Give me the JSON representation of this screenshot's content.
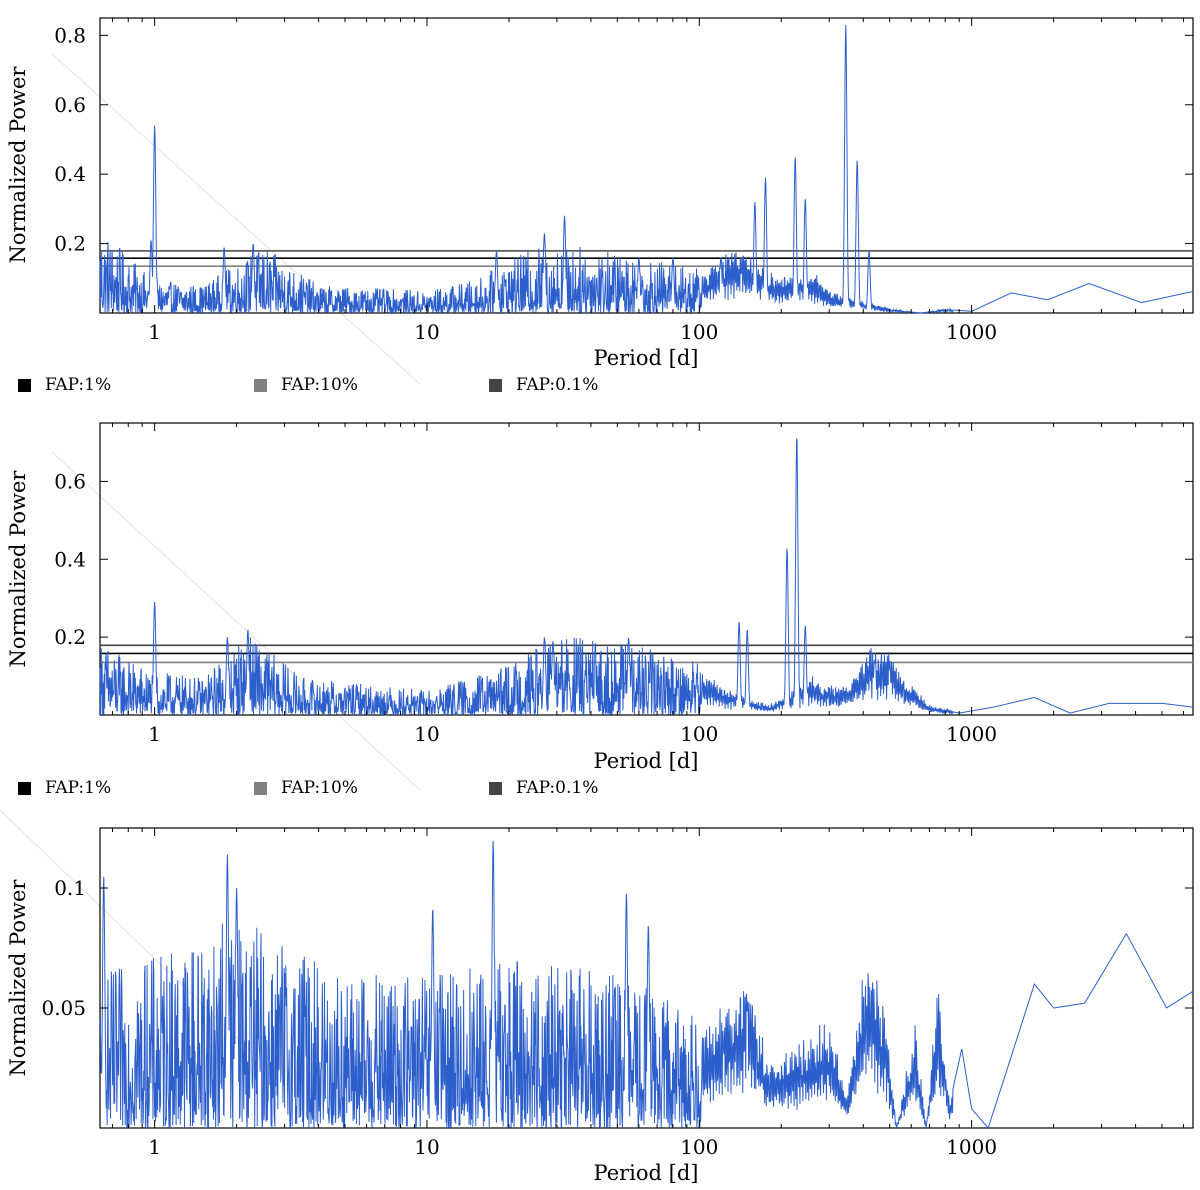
{
  "colors": {
    "series": "#2d5fcc",
    "fap_1": "#000000",
    "fap_10": "#808080",
    "fap_01": "#444444",
    "axis": "#000000"
  },
  "legend": {
    "items": [
      {
        "label": "FAP:1%",
        "color": "#000000"
      },
      {
        "label": "FAP:10%",
        "color": "#808080"
      },
      {
        "label": "FAP:0.1%",
        "color": "#444444"
      }
    ]
  },
  "chart_data": [
    {
      "type": "line",
      "title": "",
      "xlabel": "Period [d]",
      "ylabel": "Normalized Power",
      "xscale": "log",
      "xlim": [
        0.63,
        6500
      ],
      "ylim": [
        0,
        0.85
      ],
      "xticks": [
        1,
        10,
        100,
        1000
      ],
      "xtick_labels": [
        "1",
        "10",
        "100",
        "1000"
      ],
      "yticks": [
        0.2,
        0.4,
        0.6,
        0.8
      ],
      "ytick_labels": [
        "0.2",
        "0.4",
        "0.6",
        "0.8"
      ],
      "fap_levels": [
        {
          "name": "FAP:1%",
          "value": 0.158,
          "color": "#000000"
        },
        {
          "name": "FAP:10%",
          "value": 0.135,
          "color": "#808080"
        },
        {
          "name": "FAP:0.1%",
          "value": 0.179,
          "color": "#444444"
        }
      ],
      "peaks": [
        {
          "x": 1.0,
          "y": 0.54
        },
        {
          "x": 0.97,
          "y": 0.21
        },
        {
          "x": 1.8,
          "y": 0.19
        },
        {
          "x": 2.3,
          "y": 0.2
        },
        {
          "x": 18,
          "y": 0.18
        },
        {
          "x": 27,
          "y": 0.23
        },
        {
          "x": 32,
          "y": 0.28
        },
        {
          "x": 60,
          "y": 0.16
        },
        {
          "x": 80,
          "y": 0.16
        },
        {
          "x": 120,
          "y": 0.16
        },
        {
          "x": 160,
          "y": 0.32
        },
        {
          "x": 175,
          "y": 0.39
        },
        {
          "x": 225,
          "y": 0.45
        },
        {
          "x": 245,
          "y": 0.33
        },
        {
          "x": 345,
          "y": 0.83
        },
        {
          "x": 380,
          "y": 0.44
        },
        {
          "x": 420,
          "y": 0.18
        }
      ],
      "envelope": [
        [
          0.63,
          0.16
        ],
        [
          0.8,
          0.1
        ],
        [
          1.0,
          0.06
        ],
        [
          1.5,
          0.05
        ],
        [
          2.5,
          0.12
        ],
        [
          4,
          0.05
        ],
        [
          10,
          0.04
        ],
        [
          15,
          0.06
        ],
        [
          25,
          0.12
        ],
        [
          40,
          0.12
        ],
        [
          60,
          0.1
        ],
        [
          100,
          0.08
        ],
        [
          140,
          0.16
        ],
        [
          190,
          0.08
        ],
        [
          260,
          0.1
        ],
        [
          300,
          0.05
        ],
        [
          500,
          0.01
        ],
        [
          650,
          0.0
        ],
        [
          800,
          0.01
        ],
        [
          1000,
          0.005
        ],
        [
          1400,
          0.058
        ],
        [
          1900,
          0.038
        ],
        [
          2700,
          0.085
        ],
        [
          4200,
          0.03
        ],
        [
          6500,
          0.062
        ]
      ]
    },
    {
      "type": "line",
      "title": "",
      "xlabel": "Period [d]",
      "ylabel": "Normalized Power",
      "xscale": "log",
      "xlim": [
        0.63,
        6500
      ],
      "ylim": [
        0,
        0.75
      ],
      "xticks": [
        1,
        10,
        100,
        1000
      ],
      "xtick_labels": [
        "1",
        "10",
        "100",
        "1000"
      ],
      "yticks": [
        0.2,
        0.4,
        0.6
      ],
      "ytick_labels": [
        "0.2",
        "0.4",
        "0.6"
      ],
      "fap_levels": [
        {
          "name": "FAP:1%",
          "value": 0.158,
          "color": "#000000"
        },
        {
          "name": "FAP:10%",
          "value": 0.135,
          "color": "#808080"
        },
        {
          "name": "FAP:0.1%",
          "value": 0.179,
          "color": "#444444"
        }
      ],
      "peaks": [
        {
          "x": 1.0,
          "y": 0.29
        },
        {
          "x": 1.85,
          "y": 0.2
        },
        {
          "x": 2.2,
          "y": 0.22
        },
        {
          "x": 27,
          "y": 0.2
        },
        {
          "x": 29,
          "y": 0.19
        },
        {
          "x": 55,
          "y": 0.2
        },
        {
          "x": 140,
          "y": 0.24
        },
        {
          "x": 150,
          "y": 0.22
        },
        {
          "x": 210,
          "y": 0.43
        },
        {
          "x": 228,
          "y": 0.72
        },
        {
          "x": 245,
          "y": 0.23
        },
        {
          "x": 440,
          "y": 0.14
        },
        {
          "x": 500,
          "y": 0.13
        }
      ],
      "envelope": [
        [
          0.63,
          0.12
        ],
        [
          0.8,
          0.09
        ],
        [
          1.0,
          0.07
        ],
        [
          1.5,
          0.06
        ],
        [
          2.2,
          0.13
        ],
        [
          3.5,
          0.06
        ],
        [
          10,
          0.04
        ],
        [
          20,
          0.08
        ],
        [
          30,
          0.13
        ],
        [
          60,
          0.11
        ],
        [
          100,
          0.09
        ],
        [
          130,
          0.05
        ],
        [
          180,
          0.02
        ],
        [
          260,
          0.08
        ],
        [
          290,
          0.06
        ],
        [
          350,
          0.06
        ],
        [
          430,
          0.14
        ],
        [
          500,
          0.13
        ],
        [
          600,
          0.06
        ],
        [
          700,
          0.02
        ],
        [
          900,
          0.005
        ],
        [
          1200,
          0.02
        ],
        [
          1700,
          0.045
        ],
        [
          2300,
          0.005
        ],
        [
          3200,
          0.03
        ],
        [
          5000,
          0.03
        ],
        [
          6500,
          0.02
        ]
      ]
    },
    {
      "type": "line",
      "title": "",
      "xlabel": "Period [d]",
      "ylabel": "Normalized Power",
      "xscale": "log",
      "xlim": [
        0.63,
        6500
      ],
      "ylim": [
        0,
        0.125
      ],
      "xticks": [
        1,
        10,
        100,
        1000
      ],
      "xtick_labels": [
        "1",
        "10",
        "100",
        "1000"
      ],
      "yticks": [
        0.05,
        0.1
      ],
      "ytick_labels": [
        "0.05",
        "0.1"
      ],
      "peaks": [
        {
          "x": 0.65,
          "y": 0.105
        },
        {
          "x": 1.85,
          "y": 0.114
        },
        {
          "x": 2.0,
          "y": 0.1
        },
        {
          "x": 10.5,
          "y": 0.092
        },
        {
          "x": 17.5,
          "y": 0.12
        },
        {
          "x": 54,
          "y": 0.098
        },
        {
          "x": 65,
          "y": 0.085
        },
        {
          "x": 150,
          "y": 0.05
        }
      ],
      "envelope": [
        [
          0.63,
          0.04
        ],
        [
          1.0,
          0.045
        ],
        [
          2.0,
          0.055
        ],
        [
          5,
          0.04
        ],
        [
          10,
          0.04
        ],
        [
          20,
          0.045
        ],
        [
          50,
          0.04
        ],
        [
          100,
          0.03
        ],
        [
          150,
          0.05
        ],
        [
          180,
          0.02
        ],
        [
          250,
          0.03
        ],
        [
          300,
          0.035
        ],
        [
          350,
          0.01
        ],
        [
          410,
          0.06
        ],
        [
          480,
          0.04
        ],
        [
          530,
          0.0
        ],
        [
          620,
          0.035
        ],
        [
          680,
          0.0
        ],
        [
          750,
          0.047
        ],
        [
          830,
          0.01
        ],
        [
          920,
          0.033
        ],
        [
          1000,
          0.008
        ],
        [
          1150,
          0.0
        ],
        [
          1400,
          0.03
        ],
        [
          1700,
          0.06
        ],
        [
          2000,
          0.05
        ],
        [
          2600,
          0.052
        ],
        [
          3700,
          0.081
        ],
        [
          5200,
          0.05
        ],
        [
          6500,
          0.057
        ]
      ]
    }
  ]
}
